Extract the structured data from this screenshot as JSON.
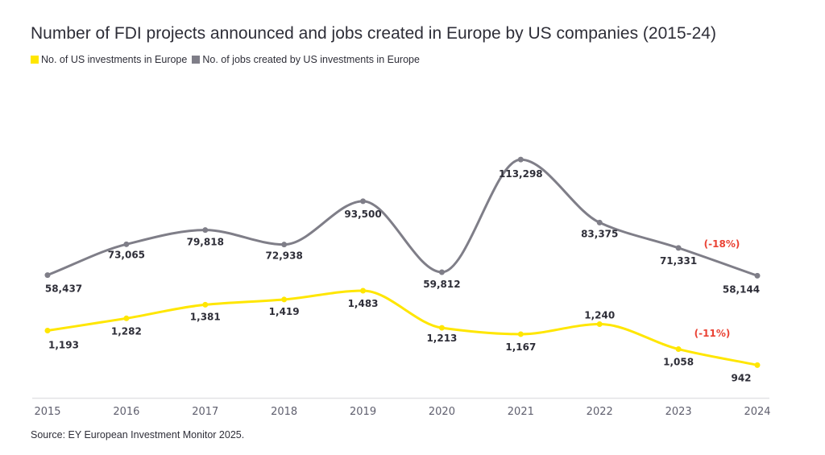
{
  "chart_data": {
    "type": "line",
    "title": "Number of FDI projects announced and jobs created in Europe by US companies (2015-24)",
    "x": [
      "2015",
      "2016",
      "2017",
      "2018",
      "2019",
      "2020",
      "2021",
      "2022",
      "2023",
      "2024"
    ],
    "series": [
      {
        "name": "No. of US investments in Europe",
        "color": "#ffe600",
        "values": [
          1193,
          1282,
          1381,
          1419,
          1483,
          1213,
          1167,
          1240,
          1058,
          942
        ],
        "labels": [
          "1,193",
          "1,282",
          "1,381",
          "1,419",
          "1,483",
          "1,213",
          "1,167",
          "1,240",
          "1,058",
          "942"
        ],
        "annotation": "(-11%)"
      },
      {
        "name": "No. of jobs created by US investments in Europe",
        "color": "#7f7e88",
        "values": [
          58437,
          73065,
          79818,
          72938,
          93500,
          59812,
          113298,
          83375,
          71331,
          58144
        ],
        "labels": [
          "58,437",
          "73,065",
          "79,818",
          "72,938",
          "93,500",
          "59,812",
          "113,298",
          "83,375",
          "71,331",
          "58,144"
        ],
        "annotation": "(-18%)"
      }
    ],
    "legend_position": "top-left",
    "grid": false,
    "source": "Source: EY European Investment Monitor 2025."
  }
}
